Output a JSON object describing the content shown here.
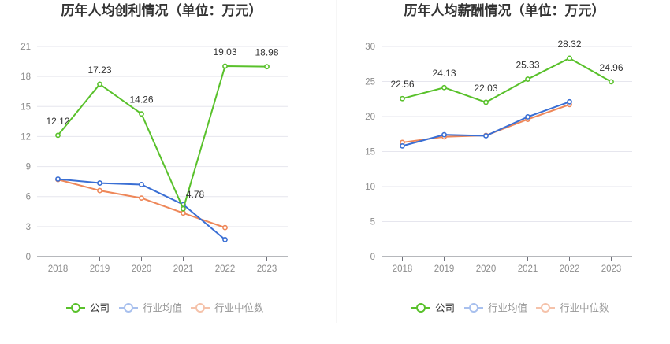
{
  "colors": {
    "company": "#59c12b",
    "industry_avg": "#3a6fd4",
    "industry_median": "#ee8759",
    "grid": "#e6e6ee",
    "axis": "#6e7079",
    "divider": "#eeeeee"
  },
  "legend": {
    "company": "公司",
    "industry_avg": "行业均值",
    "industry_median": "行业中位数"
  },
  "chart_data": [
    {
      "type": "line",
      "title": "历年人均创利情况（单位：万元）",
      "categories": [
        "2018",
        "2019",
        "2020",
        "2021",
        "2022",
        "2023"
      ],
      "ylim": [
        0,
        21
      ],
      "yticks": [
        0,
        3,
        6,
        9,
        12,
        15,
        18,
        21
      ],
      "grid": true,
      "legend_position": "bottom",
      "series": [
        {
          "name": "公司",
          "key": "company",
          "values": [
            12.12,
            17.23,
            14.26,
            4.78,
            19.03,
            18.98
          ],
          "labels": [
            "12.12",
            "17.23",
            "14.26",
            "4.78",
            "19.03",
            "18.98"
          ]
        },
        {
          "name": "行业均值",
          "key": "industry_avg",
          "values": [
            7.75,
            7.35,
            7.2,
            5.2,
            1.7,
            null
          ]
        },
        {
          "name": "行业中位数",
          "key": "industry_median",
          "values": [
            7.7,
            6.6,
            5.85,
            4.35,
            2.9,
            null
          ]
        }
      ]
    },
    {
      "type": "line",
      "title": "历年人均薪酬情况（单位：万元）",
      "categories": [
        "2018",
        "2019",
        "2020",
        "2021",
        "2022",
        "2023"
      ],
      "ylim": [
        0,
        30
      ],
      "yticks": [
        0,
        5,
        10,
        15,
        20,
        25,
        30
      ],
      "grid": true,
      "legend_position": "bottom",
      "series": [
        {
          "name": "公司",
          "key": "company",
          "values": [
            22.56,
            24.13,
            22.03,
            25.33,
            28.32,
            24.96
          ],
          "labels": [
            "22.56",
            "24.13",
            "22.03",
            "25.33",
            "28.32",
            "24.96"
          ]
        },
        {
          "name": "行业均值",
          "key": "industry_avg",
          "values": [
            15.8,
            17.4,
            17.25,
            19.95,
            22.1,
            null
          ]
        },
        {
          "name": "行业中位数",
          "key": "industry_median",
          "values": [
            16.3,
            17.1,
            17.3,
            19.6,
            21.7,
            null
          ]
        }
      ]
    }
  ]
}
